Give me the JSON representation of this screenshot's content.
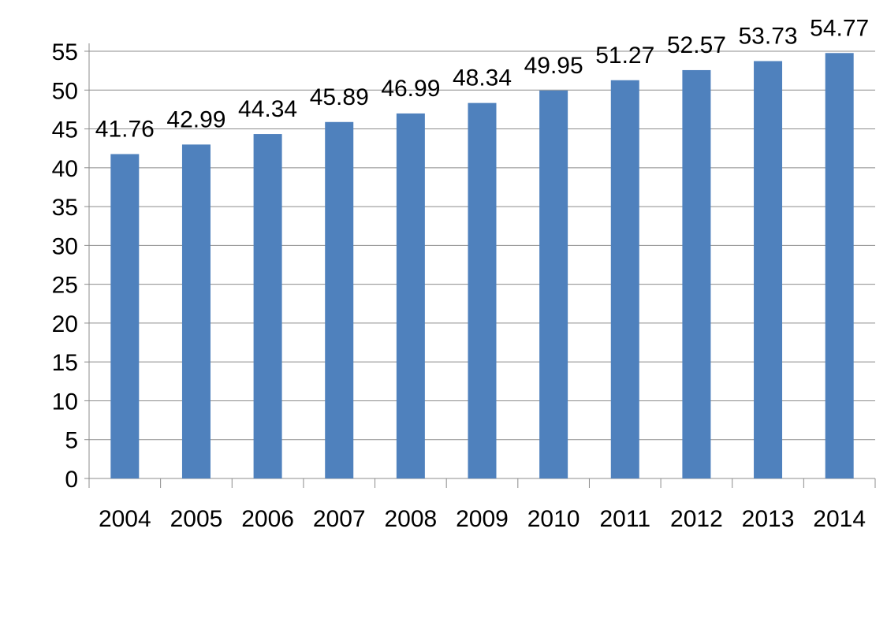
{
  "chart_data": {
    "type": "bar",
    "title": "",
    "xlabel": "",
    "ylabel": "",
    "categories": [
      "2004",
      "2005",
      "2006",
      "2007",
      "2008",
      "2009",
      "2010",
      "2011",
      "2012",
      "2013",
      "2014"
    ],
    "values": [
      41.76,
      42.99,
      44.34,
      45.89,
      46.99,
      48.34,
      49.95,
      51.27,
      52.57,
      53.73,
      54.77
    ],
    "data_labels": [
      "41.76",
      "42.99",
      "44.34",
      "45.89",
      "46.99",
      "48.34",
      "49.95",
      "51.27",
      "52.57",
      "53.73",
      "54.77"
    ],
    "ylim": [
      0,
      55
    ],
    "yticks": [
      0,
      5,
      10,
      15,
      20,
      25,
      30,
      35,
      40,
      45,
      50,
      55
    ],
    "ytick_labels": [
      "0",
      "5",
      "10",
      "15",
      "20",
      "25",
      "30",
      "35",
      "40",
      "45",
      "50",
      "55"
    ],
    "grid": true,
    "legend": "none",
    "bar_color": "#4F81BD",
    "grid_color": "#8C8C8C"
  }
}
